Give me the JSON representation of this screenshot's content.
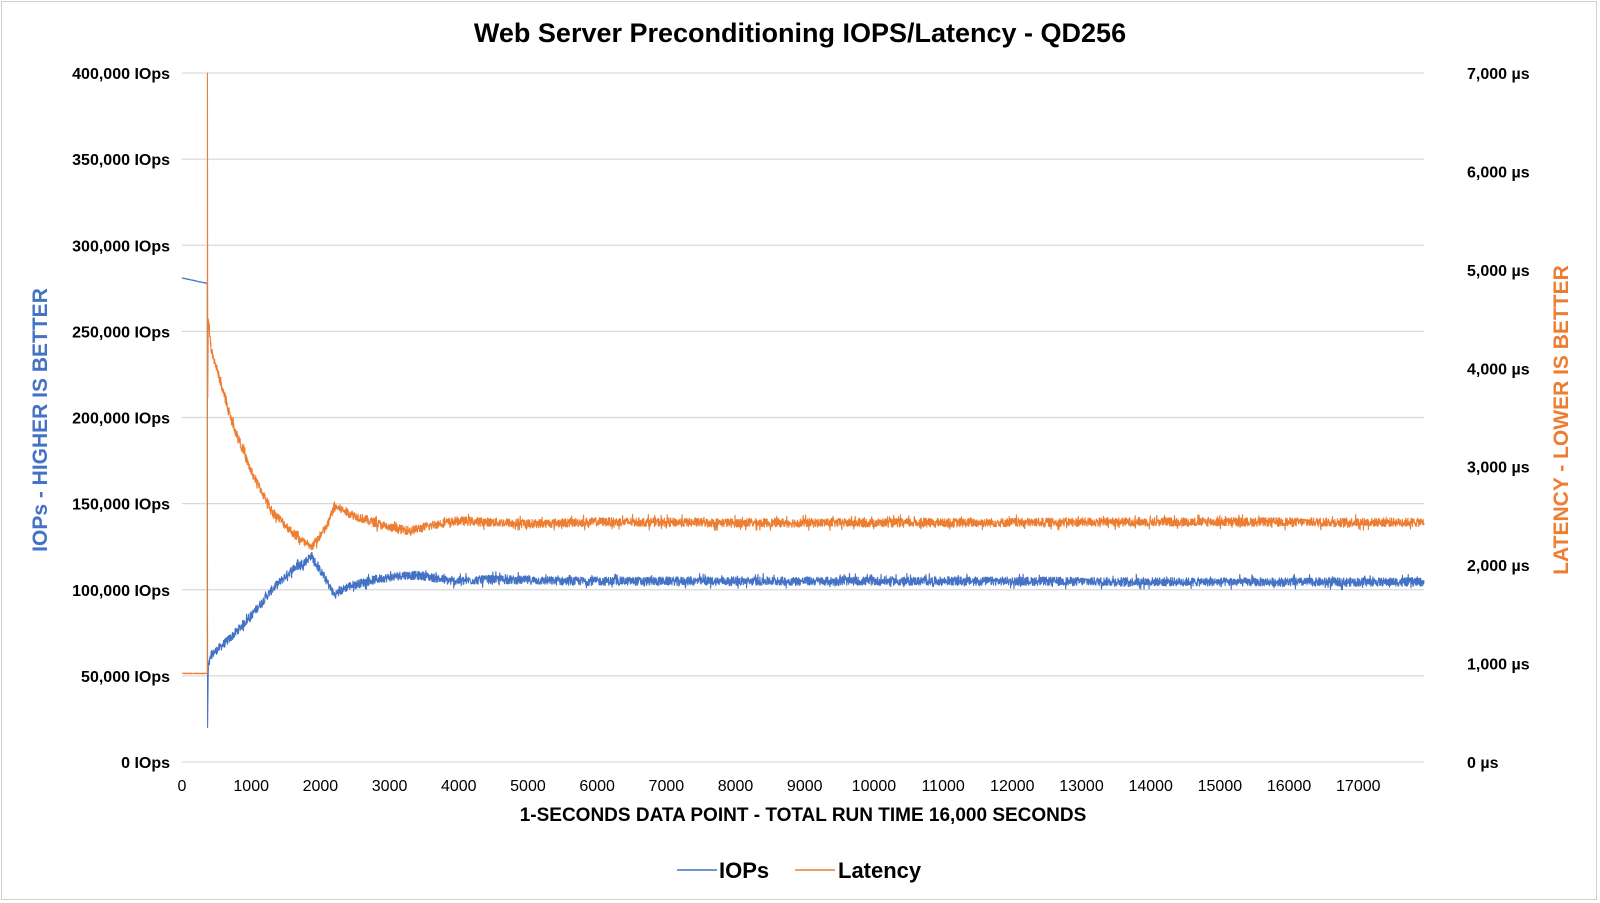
{
  "chart_data": {
    "type": "line",
    "title": "Web Server Preconditioning IOPS/Latency - QD256",
    "xlabel": "1-SECONDS DATA POINT - TOTAL RUN TIME 16,000 SECONDS",
    "ylabel_left": "IOPs - HIGHER IS BETTER",
    "ylabel_right": "LATENCY - LOWER IS BETTER",
    "xlim": [
      0,
      17950
    ],
    "ylim_left": [
      0,
      400000
    ],
    "ylim_right": [
      0,
      7000
    ],
    "grid": true,
    "legend_position": "bottom",
    "x_ticks": [
      "0",
      "1000",
      "2000",
      "3000",
      "4000",
      "5000",
      "6000",
      "7000",
      "8000",
      "9000",
      "10000",
      "11000",
      "12000",
      "13000",
      "14000",
      "15000",
      "16000",
      "17000"
    ],
    "x_tick_values": [
      0,
      1000,
      2000,
      3000,
      4000,
      5000,
      6000,
      7000,
      8000,
      9000,
      10000,
      11000,
      12000,
      13000,
      14000,
      15000,
      16000,
      17000
    ],
    "y_ticks_left": [
      "0 IOps",
      "50,000 IOps",
      "100,000 IOps",
      "150,000 IOps",
      "200,000 IOps",
      "250,000 IOps",
      "300,000 IOps",
      "350,000 IOps",
      "400,000 IOps"
    ],
    "y_tick_values_left": [
      0,
      50000,
      100000,
      150000,
      200000,
      250000,
      300000,
      350000,
      400000
    ],
    "y_ticks_right": [
      "0 µs",
      "1,000 µs",
      "2,000 µs",
      "3,000 µs",
      "4,000 µs",
      "5,000 µs",
      "6,000 µs",
      "7,000 µs"
    ],
    "y_tick_values_right": [
      0,
      1000,
      2000,
      3000,
      4000,
      5000,
      6000,
      7000
    ],
    "series": [
      {
        "name": "IOPs",
        "axis": "left",
        "color": "#4472C4",
        "noise": 2500,
        "points": [
          [
            0,
            281000
          ],
          [
            350,
            278000
          ],
          [
            365,
            278000
          ],
          [
            370,
            20000
          ],
          [
            380,
            55000
          ],
          [
            420,
            62000
          ],
          [
            700,
            72000
          ],
          [
            1000,
            85000
          ],
          [
            1300,
            100000
          ],
          [
            1600,
            112000
          ],
          [
            1800,
            117000
          ],
          [
            1870,
            120000
          ],
          [
            1950,
            114000
          ],
          [
            2050,
            108000
          ],
          [
            2200,
            97000
          ],
          [
            2400,
            102000
          ],
          [
            2800,
            106000
          ],
          [
            3200,
            108500
          ],
          [
            3500,
            108000
          ],
          [
            3900,
            105000
          ],
          [
            4500,
            106000
          ],
          [
            5500,
            105000
          ],
          [
            7000,
            105000
          ],
          [
            9000,
            105000
          ],
          [
            12000,
            105000
          ],
          [
            15000,
            104500
          ],
          [
            17950,
            104500
          ]
        ]
      },
      {
        "name": "Latency",
        "axis": "right",
        "color": "#ED7D31",
        "noise": 45,
        "points": [
          [
            0,
            900
          ],
          [
            365,
            900
          ],
          [
            368,
            7000
          ],
          [
            372,
            3700
          ],
          [
            380,
            4500
          ],
          [
            420,
            4200
          ],
          [
            700,
            3500
          ],
          [
            1000,
            2950
          ],
          [
            1300,
            2550
          ],
          [
            1600,
            2330
          ],
          [
            1850,
            2180
          ],
          [
            1950,
            2250
          ],
          [
            2100,
            2400
          ],
          [
            2200,
            2600
          ],
          [
            2500,
            2500
          ],
          [
            3000,
            2380
          ],
          [
            3300,
            2350
          ],
          [
            3700,
            2420
          ],
          [
            4000,
            2450
          ],
          [
            5000,
            2420
          ],
          [
            6000,
            2440
          ],
          [
            8000,
            2430
          ],
          [
            11000,
            2430
          ],
          [
            14000,
            2440
          ],
          [
            17950,
            2435
          ]
        ]
      }
    ]
  }
}
